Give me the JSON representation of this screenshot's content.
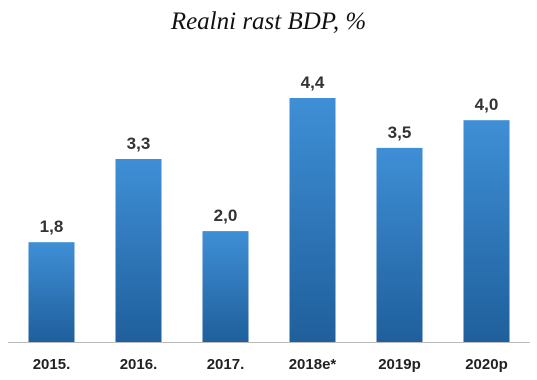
{
  "chart_data": {
    "type": "bar",
    "title": "Realni rast BDP, %",
    "categories": [
      "2015.",
      "2016.",
      "2017.",
      "2018e*",
      "2019p",
      "2020p"
    ],
    "values": [
      1.8,
      3.3,
      2.0,
      4.4,
      3.5,
      4.0
    ],
    "value_labels": [
      "1,8",
      "3,3",
      "2,0",
      "4,4",
      "3,5",
      "4,0"
    ],
    "xlabel": "",
    "ylabel": "",
    "ylim": [
      0,
      4.4
    ],
    "grid": false,
    "legend": "none",
    "colors": {
      "bar_top": "#3f8fd6",
      "bar_bottom": "#1f5f9c",
      "axis": "#bbbbbb"
    }
  }
}
